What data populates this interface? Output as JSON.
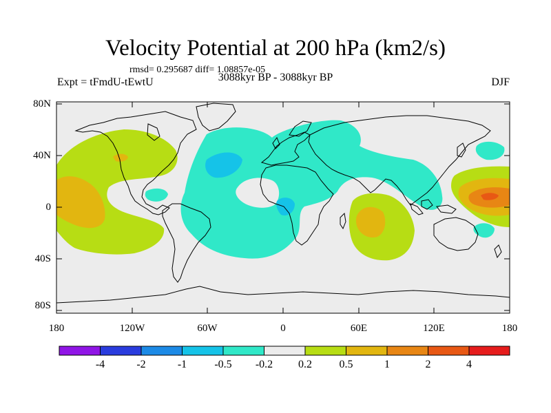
{
  "title": "Velocity Potential at 200 hPa (km2/s)",
  "stats": "rmsd= 0.295687 diff= 1.08857e-05",
  "experiment": "Expt = tFmdU-tEwtU",
  "period": "3088kyr BP - 3088kyr BP",
  "season": "DJF",
  "axes": {
    "y_ticks": [
      "80N",
      "40N",
      "0",
      "40S",
      "80S"
    ],
    "x_ticks": [
      "180",
      "120W",
      "60W",
      "0",
      "60E",
      "120E",
      "180"
    ]
  },
  "colorbar": {
    "colors": [
      "#9015e6",
      "#2a3cde",
      "#1c8ae6",
      "#15c3e8",
      "#30e8c8",
      "#ececec",
      "#b7dd14",
      "#e2b610",
      "#e88614",
      "#e85814",
      "#e61c1c"
    ],
    "labels": [
      "-4",
      "-2",
      "-1",
      "-0.5",
      "-0.2",
      "0.2",
      "0.5",
      "1",
      "2",
      "4"
    ]
  }
}
